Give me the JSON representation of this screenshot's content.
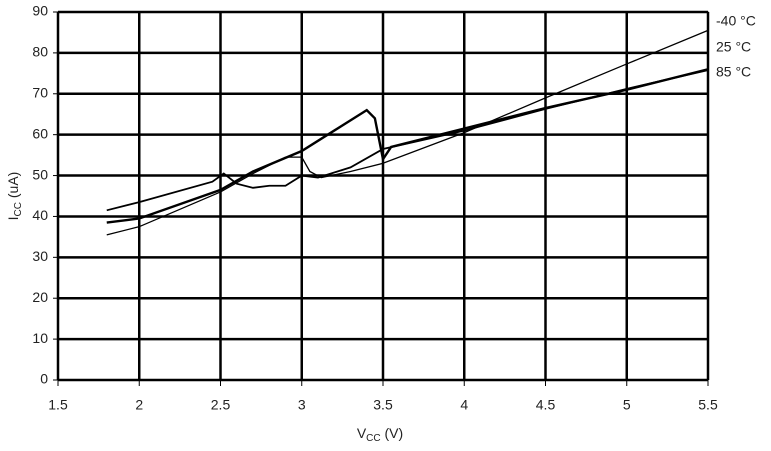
{
  "chart_data": {
    "type": "line",
    "x_label": [
      "V",
      "CC",
      " (V)"
    ],
    "y_label": [
      "I",
      "CC",
      " (uA)"
    ],
    "xlim": [
      1.5,
      5.5
    ],
    "xticks": [
      1.5,
      2,
      2.5,
      3,
      3.5,
      4,
      4.5,
      5,
      5.5
    ],
    "ylim": [
      0,
      90
    ],
    "yticks": [
      0,
      10,
      20,
      30,
      40,
      50,
      60,
      70,
      80,
      90
    ],
    "grid": true,
    "series": [
      {
        "name": "-40 °C",
        "color": "#000000",
        "x": [
          1.8,
          2.0,
          2.5,
          2.7,
          2.9,
          3.0,
          3.05,
          3.12,
          3.3,
          3.5,
          4.0,
          4.5,
          5.0,
          5.5
        ],
        "values": [
          35.5,
          37.5,
          46,
          50.5,
          54.5,
          54.5,
          51,
          49.5,
          51,
          53,
          60.5,
          69,
          77.3,
          85.5
        ]
      },
      {
        "name": "25 °C",
        "color": "#000000",
        "x": [
          1.8,
          2.0,
          2.45,
          2.52,
          2.6,
          2.7,
          2.8,
          2.9,
          3.0,
          3.1,
          3.3,
          3.5,
          4.0,
          4.5,
          5.0,
          5.5
        ],
        "values": [
          41.5,
          43.5,
          48.5,
          50.5,
          48,
          47,
          47.5,
          47.5,
          50,
          49.5,
          52,
          56.5,
          61,
          66.3,
          71.2,
          75.8
        ]
      },
      {
        "name": "85 °C",
        "color": "#000000",
        "x": [
          1.8,
          2.0,
          2.5,
          2.7,
          3.0,
          3.2,
          3.4,
          3.45,
          3.5,
          3.55,
          4.0,
          4.5,
          5.0,
          5.5
        ],
        "values": [
          38.5,
          39.5,
          46.5,
          51,
          56,
          61,
          66,
          64,
          54,
          57,
          61.5,
          66.5,
          71,
          76
        ]
      }
    ]
  }
}
